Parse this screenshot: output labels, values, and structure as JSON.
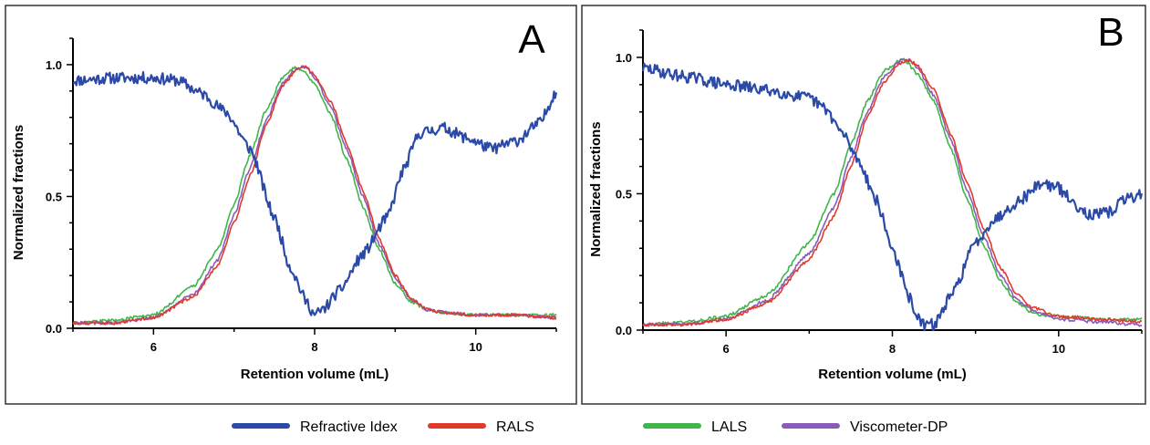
{
  "chart_data": [
    {
      "type": "line",
      "panel_label": "A",
      "xlabel": "Retention volume (mL)",
      "ylabel": "Normalized fractions",
      "xlim": [
        5,
        11
      ],
      "ylim": [
        0,
        1.1
      ],
      "x_ticks": [
        6,
        8,
        10
      ],
      "y_ticks": [
        0.0,
        0.5,
        1.0
      ],
      "x_tick_labels": [
        "6",
        "8",
        "10"
      ],
      "y_tick_labels": [
        "0.0",
        "0.5",
        "1.0"
      ],
      "grid": false,
      "series": [
        {
          "name": "Refractive Idex",
          "color": "#2b4aa8",
          "x": [
            5.0,
            5.5,
            6.0,
            6.3,
            6.6,
            6.9,
            7.2,
            7.5,
            7.7,
            7.9,
            8.0,
            8.1,
            8.3,
            8.6,
            8.9,
            9.1,
            9.3,
            9.6,
            9.9,
            10.2,
            10.5,
            10.8,
            11.0
          ],
          "y": [
            0.94,
            0.95,
            0.95,
            0.94,
            0.89,
            0.82,
            0.68,
            0.42,
            0.23,
            0.1,
            0.05,
            0.07,
            0.14,
            0.28,
            0.42,
            0.6,
            0.74,
            0.76,
            0.72,
            0.68,
            0.71,
            0.78,
            0.9
          ]
        },
        {
          "name": "RALS",
          "color": "#e03a2d",
          "x": [
            5.0,
            5.5,
            6.0,
            6.5,
            6.8,
            7.0,
            7.2,
            7.4,
            7.6,
            7.8,
            7.9,
            8.0,
            8.2,
            8.4,
            8.6,
            8.8,
            9.0,
            9.2,
            9.4,
            9.6,
            10.0,
            10.5,
            11.0
          ],
          "y": [
            0.02,
            0.02,
            0.04,
            0.12,
            0.24,
            0.4,
            0.58,
            0.77,
            0.92,
            0.99,
            0.99,
            0.96,
            0.86,
            0.7,
            0.52,
            0.34,
            0.2,
            0.11,
            0.07,
            0.06,
            0.05,
            0.05,
            0.04
          ]
        },
        {
          "name": "LALS",
          "color": "#3fb54a",
          "x": [
            5.0,
            5.5,
            6.0,
            6.5,
            6.8,
            7.0,
            7.2,
            7.4,
            7.6,
            7.75,
            7.85,
            8.0,
            8.2,
            8.4,
            8.6,
            8.8,
            9.0,
            9.2,
            9.4,
            9.6,
            10.0,
            10.5,
            11.0
          ],
          "y": [
            0.02,
            0.03,
            0.05,
            0.16,
            0.3,
            0.47,
            0.66,
            0.83,
            0.95,
            0.99,
            0.98,
            0.93,
            0.81,
            0.64,
            0.46,
            0.3,
            0.17,
            0.1,
            0.07,
            0.06,
            0.05,
            0.05,
            0.05
          ]
        },
        {
          "name": "Viscometer-DP",
          "color": "#8a5cb8",
          "x": [
            5.0,
            5.5,
            6.0,
            6.5,
            6.8,
            7.0,
            7.2,
            7.4,
            7.6,
            7.8,
            7.9,
            8.0,
            8.2,
            8.4,
            8.6,
            8.8,
            9.0,
            9.2,
            9.4,
            9.6,
            10.0,
            10.5,
            11.0
          ],
          "y": [
            0.02,
            0.02,
            0.04,
            0.13,
            0.26,
            0.43,
            0.61,
            0.79,
            0.93,
            0.99,
            0.99,
            0.95,
            0.84,
            0.68,
            0.5,
            0.32,
            0.19,
            0.11,
            0.07,
            0.06,
            0.05,
            0.05,
            0.04
          ]
        }
      ]
    },
    {
      "type": "line",
      "panel_label": "B",
      "xlabel": "Retention volume (mL)",
      "ylabel": "Normalized fractions",
      "xlim": [
        5,
        11
      ],
      "ylim": [
        0,
        1.1
      ],
      "x_ticks": [
        6,
        8,
        10
      ],
      "y_ticks": [
        0.0,
        0.5,
        1.0
      ],
      "x_tick_labels": [
        "6",
        "8",
        "10"
      ],
      "y_tick_labels": [
        "0.0",
        "0.5",
        "1.0"
      ],
      "grid": false,
      "series": [
        {
          "name": "Refractive Idex",
          "color": "#2b4aa8",
          "x": [
            5.0,
            5.5,
            6.0,
            6.5,
            7.0,
            7.2,
            7.4,
            7.6,
            7.8,
            8.0,
            8.2,
            8.35,
            8.5,
            8.7,
            9.0,
            9.2,
            9.5,
            9.8,
            10.0,
            10.2,
            10.4,
            10.6,
            10.8,
            11.0
          ],
          "y": [
            0.96,
            0.93,
            0.9,
            0.88,
            0.85,
            0.81,
            0.72,
            0.62,
            0.48,
            0.3,
            0.12,
            0.02,
            0.02,
            0.12,
            0.32,
            0.4,
            0.47,
            0.54,
            0.52,
            0.46,
            0.42,
            0.43,
            0.48,
            0.5
          ]
        },
        {
          "name": "RALS",
          "color": "#e03a2d",
          "x": [
            5.0,
            5.5,
            6.0,
            6.5,
            7.0,
            7.3,
            7.5,
            7.7,
            7.9,
            8.1,
            8.2,
            8.3,
            8.5,
            8.7,
            8.9,
            9.1,
            9.3,
            9.5,
            9.7,
            10.0,
            10.5,
            11.0
          ],
          "y": [
            0.02,
            0.02,
            0.04,
            0.1,
            0.26,
            0.42,
            0.6,
            0.78,
            0.91,
            0.98,
            0.99,
            0.97,
            0.88,
            0.72,
            0.54,
            0.37,
            0.23,
            0.13,
            0.08,
            0.05,
            0.04,
            0.03
          ]
        },
        {
          "name": "LALS",
          "color": "#3fb54a",
          "x": [
            5.0,
            5.5,
            6.0,
            6.5,
            7.0,
            7.3,
            7.5,
            7.7,
            7.9,
            8.1,
            8.15,
            8.3,
            8.5,
            8.7,
            8.9,
            9.1,
            9.3,
            9.5,
            9.7,
            10.0,
            10.5,
            11.0
          ],
          "y": [
            0.02,
            0.03,
            0.05,
            0.13,
            0.32,
            0.5,
            0.68,
            0.84,
            0.95,
            0.99,
            0.99,
            0.94,
            0.84,
            0.67,
            0.48,
            0.31,
            0.18,
            0.1,
            0.06,
            0.05,
            0.04,
            0.04
          ]
        },
        {
          "name": "Viscometer-DP",
          "color": "#8a5cb8",
          "x": [
            5.0,
            5.5,
            6.0,
            6.5,
            7.0,
            7.3,
            7.5,
            7.7,
            7.9,
            8.1,
            8.2,
            8.3,
            8.5,
            8.7,
            8.9,
            9.1,
            9.3,
            9.5,
            9.7,
            10.0,
            10.5,
            11.0
          ],
          "y": [
            0.02,
            0.02,
            0.04,
            0.11,
            0.28,
            0.45,
            0.63,
            0.8,
            0.93,
            0.99,
            0.99,
            0.96,
            0.86,
            0.7,
            0.51,
            0.34,
            0.2,
            0.11,
            0.07,
            0.04,
            0.03,
            0.02
          ]
        }
      ]
    }
  ],
  "legend": {
    "placement": "bottom",
    "items": [
      {
        "label": "Refractive Idex",
        "color": "#2b4aa8"
      },
      {
        "label": "RALS",
        "color": "#e03a2d"
      },
      {
        "label": "LALS",
        "color": "#3fb54a"
      },
      {
        "label": "Viscometer-DP",
        "color": "#8a5cb8"
      }
    ]
  }
}
